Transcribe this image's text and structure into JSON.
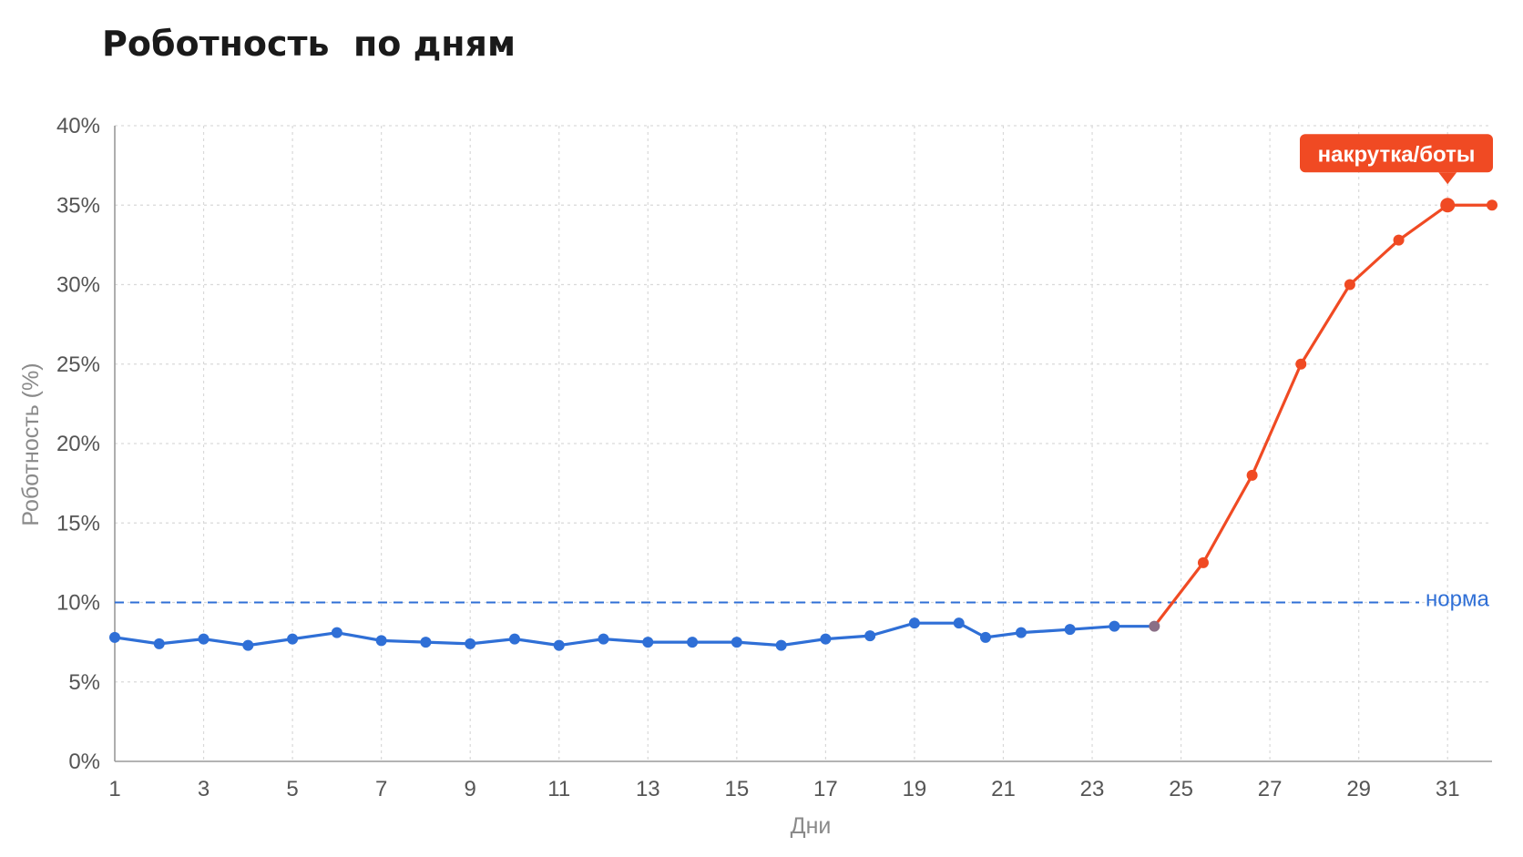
{
  "page": {
    "title": "Роботность  по дням"
  },
  "colors": {
    "normal_series": "#2f6fd6",
    "anomaly_series": "#f04a23",
    "transition_point": "#8a6f86",
    "reference_line": "#2f6fd6",
    "callout_bg": "#f04a23"
  },
  "chart_data": {
    "type": "line",
    "title": "Роботность  по дням",
    "xlabel": "Дни",
    "ylabel": "Роботность (%)",
    "xlim": [
      1,
      32
    ],
    "ylim": [
      0,
      40
    ],
    "x_ticks": [
      1,
      3,
      5,
      7,
      9,
      11,
      13,
      15,
      17,
      19,
      21,
      23,
      25,
      27,
      29,
      31
    ],
    "y_ticks": [
      0,
      5,
      10,
      15,
      20,
      25,
      30,
      35,
      40
    ],
    "y_tick_labels": [
      "0%",
      "5%",
      "10%",
      "15%",
      "20%",
      "25%",
      "30%",
      "35%",
      "40%"
    ],
    "grid": true,
    "series": [
      {
        "color": "#2f6fd6",
        "x": [
          1,
          2,
          3,
          4,
          5,
          6,
          7,
          8,
          9,
          10,
          11,
          12,
          13,
          14,
          15,
          16,
          17,
          18,
          19,
          20,
          20.6,
          21.4,
          22.5,
          23.5,
          24.4
        ],
        "y": [
          7.8,
          7.4,
          7.7,
          7.3,
          7.7,
          8.1,
          7.6,
          7.5,
          7.4,
          7.7,
          7.3,
          7.7,
          7.5,
          7.5,
          7.5,
          7.3,
          7.7,
          7.9,
          8.7,
          8.7,
          7.8,
          8.1,
          8.3,
          8.5,
          8.5
        ]
      },
      {
        "color": "#f04a23",
        "x": [
          24.4,
          25.5,
          26.6,
          27.7,
          28.8,
          29.9,
          31,
          32
        ],
        "y": [
          8.5,
          12.5,
          18,
          25,
          30,
          32.8,
          35,
          35
        ]
      }
    ],
    "transition_point": {
      "x": 24.4,
      "y": 8.5
    },
    "reference_line": {
      "y": 10,
      "label": "норма",
      "style": "dashed"
    },
    "annotations": [
      {
        "text": "накрутка/боты",
        "x": 31,
        "y": 35
      }
    ]
  }
}
